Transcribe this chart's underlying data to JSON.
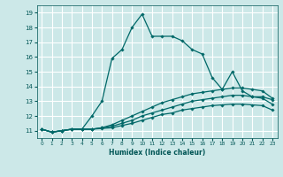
{
  "xlabel": "Humidex (Indice chaleur)",
  "ylabel": "",
  "bg_color": "#cce8e8",
  "line_color": "#006868",
  "grid_color": "#b8d8d8",
  "xlim": [
    -0.5,
    23.5
  ],
  "ylim": [
    10.5,
    19.5
  ],
  "xticks": [
    0,
    1,
    2,
    3,
    4,
    5,
    6,
    7,
    8,
    9,
    10,
    11,
    12,
    13,
    14,
    15,
    16,
    17,
    18,
    19,
    20,
    21,
    22,
    23
  ],
  "yticks": [
    11,
    12,
    13,
    14,
    15,
    16,
    17,
    18,
    19
  ],
  "line1_y": [
    11.1,
    10.9,
    11.0,
    11.1,
    11.1,
    12.0,
    13.0,
    15.9,
    16.5,
    18.0,
    18.9,
    17.4,
    17.4,
    17.4,
    17.1,
    16.5,
    16.2,
    14.6,
    13.8,
    15.0,
    13.7,
    13.3,
    13.3,
    13.1
  ],
  "line2_y": [
    11.1,
    10.9,
    11.0,
    11.1,
    11.1,
    11.1,
    11.2,
    11.4,
    11.7,
    12.0,
    12.3,
    12.6,
    12.9,
    13.1,
    13.3,
    13.5,
    13.6,
    13.7,
    13.8,
    13.9,
    13.9,
    13.8,
    13.7,
    13.2
  ],
  "line3_y": [
    11.1,
    10.9,
    11.0,
    11.1,
    11.1,
    11.1,
    11.2,
    11.3,
    11.5,
    11.7,
    12.0,
    12.2,
    12.4,
    12.6,
    12.8,
    13.0,
    13.1,
    13.2,
    13.3,
    13.4,
    13.4,
    13.3,
    13.2,
    12.8
  ],
  "line4_y": [
    11.1,
    10.9,
    11.0,
    11.1,
    11.1,
    11.1,
    11.15,
    11.2,
    11.35,
    11.5,
    11.7,
    11.9,
    12.1,
    12.2,
    12.4,
    12.5,
    12.6,
    12.7,
    12.75,
    12.8,
    12.8,
    12.75,
    12.7,
    12.4
  ]
}
